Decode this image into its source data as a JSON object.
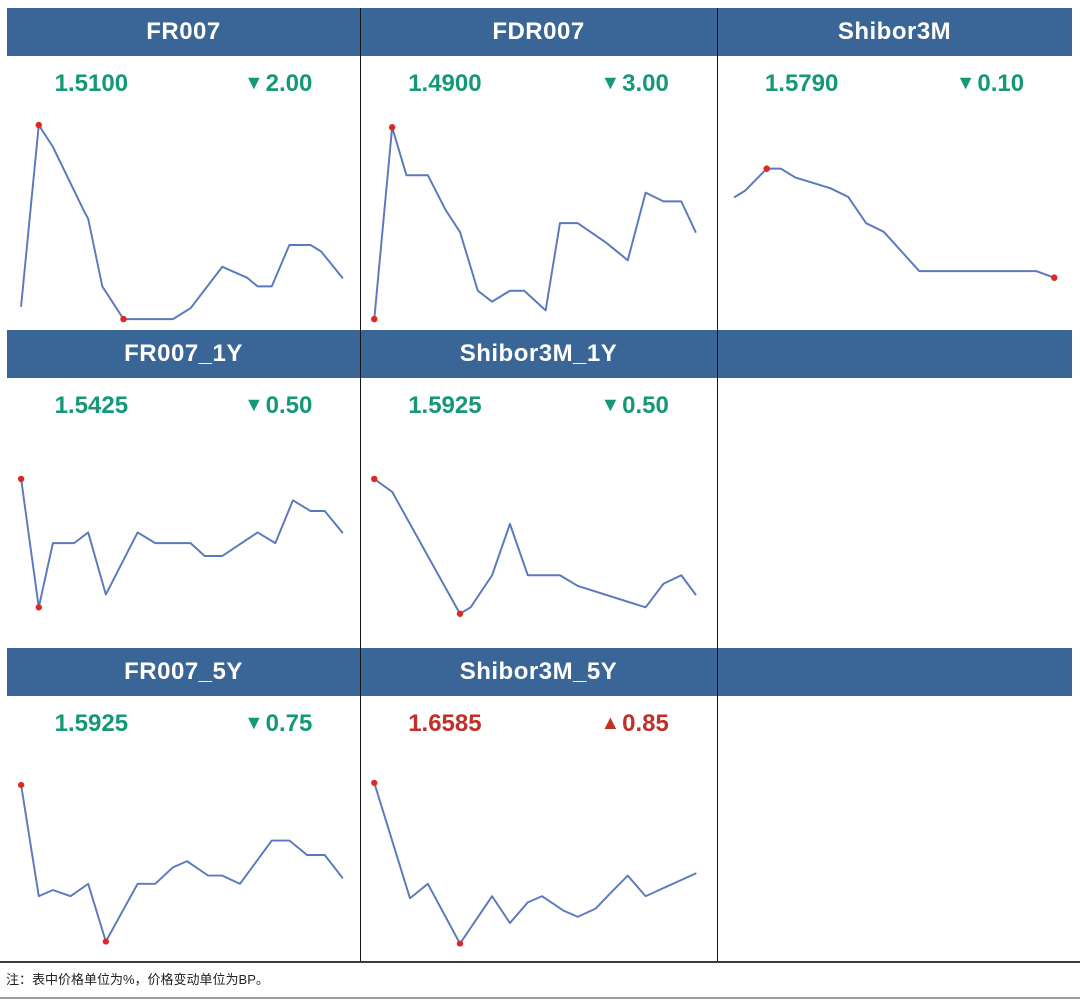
{
  "note": "注：表中价格单位为%，价格变动单位为BP。",
  "colors": {
    "header_bg": "#3a6597",
    "line": "#5b79be",
    "dot": "#e02823",
    "down": "#159878",
    "up": "#c02f28",
    "divider": "#161616"
  },
  "panels": [
    {
      "title": "FR007",
      "last": "1.5100",
      "arrow": "▼",
      "change": "2.00",
      "direction": "down"
    },
    {
      "title": "FDR007",
      "last": "1.4900",
      "arrow": "▼",
      "change": "3.00",
      "direction": "down"
    },
    {
      "title": "Shibor3M",
      "last": "1.5790",
      "arrow": "▼",
      "change": "0.10",
      "direction": "down"
    },
    {
      "title": "FR007_1Y",
      "last": "1.5425",
      "arrow": "▼",
      "change": "0.50",
      "direction": "down"
    },
    {
      "title": "Shibor3M_1Y",
      "last": "1.5925",
      "arrow": "▼",
      "change": "0.50",
      "direction": "down"
    },
    {
      "title": "FR007_5Y",
      "last": "1.5925",
      "arrow": "▼",
      "change": "0.75",
      "direction": "down"
    },
    {
      "title": "Shibor3M_5Y",
      "last": "1.6585",
      "arrow": "▲",
      "change": "0.85",
      "direction": "up"
    }
  ],
  "chart_data": [
    {
      "type": "line",
      "title": "FR007",
      "unit": "%",
      "last": 1.51,
      "change_bp": -2.0,
      "axes": "none",
      "x_norm": [
        4,
        9,
        13,
        22,
        23,
        27,
        33,
        47,
        52,
        61,
        68,
        71,
        75,
        80,
        86,
        89,
        95
      ],
      "y_norm": [
        11,
        94,
        84,
        54,
        51,
        20,
        5,
        5,
        10,
        29,
        24,
        20,
        20,
        39,
        39,
        36,
        24
      ],
      "marker_indices": [
        1,
        6
      ]
    },
    {
      "type": "line",
      "title": "FDR007",
      "unit": "%",
      "last": 1.49,
      "change_bp": -3.0,
      "axes": "none",
      "x_norm": [
        4,
        9,
        13,
        19,
        24,
        28,
        33,
        37,
        42,
        46,
        52,
        56,
        61,
        69,
        75,
        80,
        85,
        90,
        94
      ],
      "y_norm": [
        5,
        93,
        71,
        71,
        55,
        45,
        18,
        13,
        18,
        18,
        9,
        49,
        49,
        40,
        32,
        63,
        59,
        59,
        45
      ],
      "marker_indices": [
        0,
        1
      ]
    },
    {
      "type": "line",
      "title": "Shibor3M",
      "unit": "%",
      "last": 1.579,
      "change_bp": -0.1,
      "axes": "none",
      "x_norm": [
        5,
        8,
        14,
        18,
        22,
        28,
        32,
        37,
        42,
        47,
        57,
        90,
        95
      ],
      "y_norm": [
        61,
        64,
        74,
        74,
        70,
        67,
        65,
        61,
        49,
        45,
        27,
        27,
        24
      ],
      "marker_indices": [
        2,
        12
      ]
    },
    {
      "type": "line",
      "title": "FR007_1Y",
      "unit": "%",
      "last": 1.5425,
      "change_bp": -0.5,
      "axes": "none",
      "x_norm": [
        4,
        9,
        13,
        19,
        23,
        28,
        37,
        42,
        52,
        56,
        61,
        71,
        76,
        81,
        86,
        90,
        95
      ],
      "y_norm": [
        79,
        19,
        49,
        49,
        54,
        25,
        54,
        49,
        49,
        43,
        43,
        54,
        49,
        69,
        64,
        64,
        54
      ],
      "marker_indices": [
        0,
        1
      ]
    },
    {
      "type": "line",
      "title": "Shibor3M_1Y",
      "unit": "%",
      "last": 1.5925,
      "change_bp": -0.5,
      "axes": "none",
      "x_norm": [
        4,
        9,
        28,
        31,
        37,
        42,
        47,
        56,
        61,
        80,
        85,
        90,
        94
      ],
      "y_norm": [
        79,
        73,
        16,
        19,
        34,
        58,
        34,
        34,
        29,
        19,
        30,
        34,
        25
      ],
      "marker_indices": [
        0,
        2
      ]
    },
    {
      "type": "line",
      "title": "FR007_5Y",
      "unit": "%",
      "last": 1.5925,
      "change_bp": -0.75,
      "axes": "none",
      "x_norm": [
        4,
        9,
        13,
        18,
        23,
        28,
        37,
        42,
        47,
        51,
        57,
        61,
        66,
        75,
        80,
        85,
        90,
        95
      ],
      "y_norm": [
        84,
        30,
        33,
        30,
        36,
        8,
        36,
        36,
        44,
        47,
        40,
        40,
        36,
        57,
        57,
        50,
        50,
        39
      ],
      "marker_indices": [
        0,
        5
      ]
    },
    {
      "type": "line",
      "title": "Shibor3M_5Y",
      "unit": "%",
      "last": 1.6585,
      "change_bp": 0.85,
      "axes": "none",
      "x_norm": [
        4,
        14,
        19,
        28,
        37,
        42,
        47,
        51,
        57,
        61,
        66,
        71,
        75,
        80,
        94
      ],
      "y_norm": [
        85,
        29,
        36,
        7,
        30,
        17,
        27,
        30,
        23,
        20,
        24,
        33,
        40,
        30,
        41
      ],
      "marker_indices": [
        0,
        3
      ]
    }
  ]
}
